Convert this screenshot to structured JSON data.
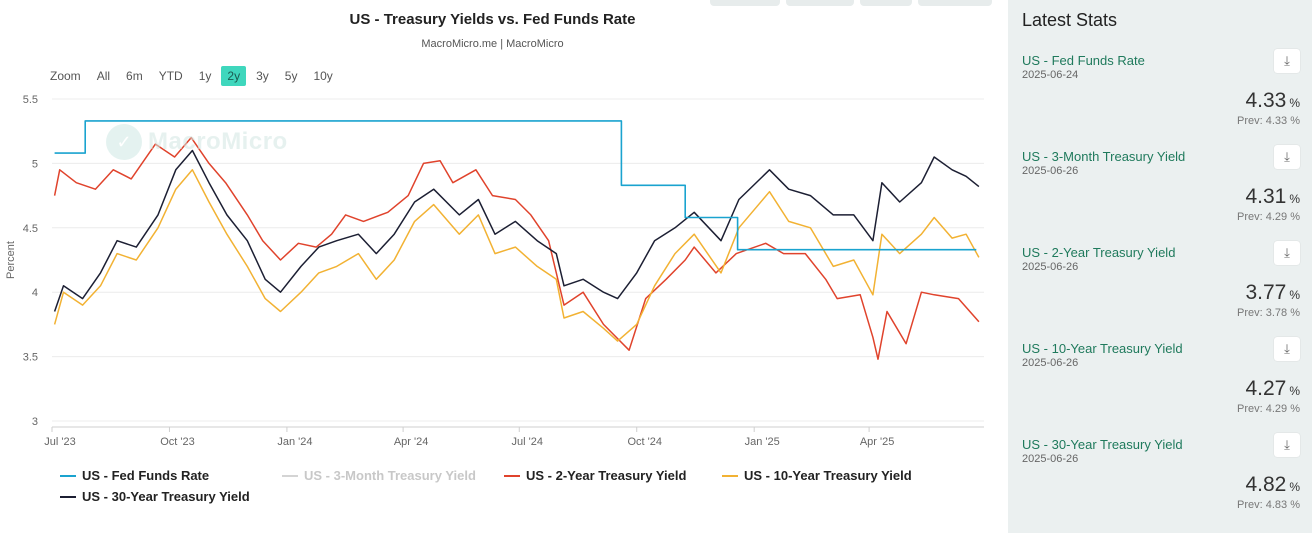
{
  "chart_data": {
    "type": "line",
    "title": "US - Treasury Yields vs. Fed Funds Rate",
    "subtitle": "MacroMicro.me | MacroMicro",
    "ylabel": "Percent",
    "ylim": [
      3,
      5.5
    ],
    "yticks": [
      "3",
      "3.5",
      "4",
      "4.5",
      "5",
      "5.5"
    ],
    "xlim": [
      "2023-07-01",
      "2025-06-30"
    ],
    "xticks": [
      {
        "label": "Jul '23",
        "date": "2023-07-01"
      },
      {
        "label": "Oct '23",
        "date": "2023-10-01"
      },
      {
        "label": "Jan '24",
        "date": "2024-01-01"
      },
      {
        "label": "Apr '24",
        "date": "2024-04-01"
      },
      {
        "label": "Jul '24",
        "date": "2024-07-01"
      },
      {
        "label": "Oct '24",
        "date": "2024-10-01"
      },
      {
        "label": "Jan '25",
        "date": "2025-01-01"
      },
      {
        "label": "Apr '25",
        "date": "2025-04-01"
      }
    ],
    "grid": true,
    "legend_position": "bottom",
    "series": [
      {
        "name": "US - Fed Funds Rate",
        "color": "#1aa3cf",
        "visible": true,
        "step": true,
        "points": [
          [
            "2023-07-03",
            5.08
          ],
          [
            "2023-07-27",
            5.33
          ],
          [
            "2024-09-19",
            4.83
          ],
          [
            "2024-11-08",
            4.58
          ],
          [
            "2024-12-19",
            4.33
          ],
          [
            "2025-06-24",
            4.33
          ]
        ]
      },
      {
        "name": "US - 3-Month Treasury Yield",
        "color": "#c9c9c9",
        "visible": false,
        "points": []
      },
      {
        "name": "US - 2-Year Treasury Yield",
        "color": "#e0432c",
        "visible": true,
        "points": [
          [
            "2023-07-03",
            4.75
          ],
          [
            "2023-07-07",
            4.95
          ],
          [
            "2023-07-20",
            4.85
          ],
          [
            "2023-08-04",
            4.8
          ],
          [
            "2023-08-18",
            4.95
          ],
          [
            "2023-09-01",
            4.88
          ],
          [
            "2023-09-20",
            5.15
          ],
          [
            "2023-10-05",
            5.05
          ],
          [
            "2023-10-18",
            5.2
          ],
          [
            "2023-11-01",
            5.0
          ],
          [
            "2023-11-14",
            4.85
          ],
          [
            "2023-12-01",
            4.6
          ],
          [
            "2023-12-13",
            4.4
          ],
          [
            "2023-12-27",
            4.25
          ],
          [
            "2024-01-10",
            4.38
          ],
          [
            "2024-01-24",
            4.35
          ],
          [
            "2024-02-05",
            4.45
          ],
          [
            "2024-02-16",
            4.6
          ],
          [
            "2024-03-01",
            4.55
          ],
          [
            "2024-03-20",
            4.62
          ],
          [
            "2024-04-05",
            4.75
          ],
          [
            "2024-04-17",
            5.0
          ],
          [
            "2024-04-30",
            5.02
          ],
          [
            "2024-05-10",
            4.85
          ],
          [
            "2024-05-28",
            4.95
          ],
          [
            "2024-06-10",
            4.75
          ],
          [
            "2024-06-28",
            4.72
          ],
          [
            "2024-07-10",
            4.6
          ],
          [
            "2024-07-24",
            4.4
          ],
          [
            "2024-08-05",
            3.9
          ],
          [
            "2024-08-20",
            4.0
          ],
          [
            "2024-09-05",
            3.75
          ],
          [
            "2024-09-25",
            3.55
          ],
          [
            "2024-10-08",
            3.95
          ],
          [
            "2024-10-24",
            4.1
          ],
          [
            "2024-11-08",
            4.25
          ],
          [
            "2024-11-15",
            4.35
          ],
          [
            "2024-12-02",
            4.15
          ],
          [
            "2024-12-18",
            4.3
          ],
          [
            "2025-01-10",
            4.38
          ],
          [
            "2025-01-24",
            4.3
          ],
          [
            "2025-02-10",
            4.3
          ],
          [
            "2025-02-26",
            4.1
          ],
          [
            "2025-03-07",
            3.95
          ],
          [
            "2025-03-25",
            3.98
          ],
          [
            "2025-04-04",
            3.65
          ],
          [
            "2025-04-08",
            3.48
          ],
          [
            "2025-04-15",
            3.85
          ],
          [
            "2025-04-30",
            3.6
          ],
          [
            "2025-05-12",
            4.0
          ],
          [
            "2025-05-22",
            3.98
          ],
          [
            "2025-06-10",
            3.95
          ],
          [
            "2025-06-26",
            3.77
          ]
        ]
      },
      {
        "name": "US - 10-Year Treasury Yield",
        "color": "#f2b233",
        "visible": true,
        "points": [
          [
            "2023-07-03",
            3.75
          ],
          [
            "2023-07-10",
            4.0
          ],
          [
            "2023-07-25",
            3.9
          ],
          [
            "2023-08-08",
            4.05
          ],
          [
            "2023-08-21",
            4.3
          ],
          [
            "2023-09-05",
            4.25
          ],
          [
            "2023-09-22",
            4.5
          ],
          [
            "2023-10-06",
            4.8
          ],
          [
            "2023-10-19",
            4.95
          ],
          [
            "2023-11-01",
            4.7
          ],
          [
            "2023-11-15",
            4.45
          ],
          [
            "2023-12-01",
            4.2
          ],
          [
            "2023-12-15",
            3.95
          ],
          [
            "2023-12-27",
            3.85
          ],
          [
            "2024-01-12",
            4.0
          ],
          [
            "2024-01-26",
            4.15
          ],
          [
            "2024-02-09",
            4.2
          ],
          [
            "2024-02-26",
            4.3
          ],
          [
            "2024-03-11",
            4.1
          ],
          [
            "2024-03-25",
            4.25
          ],
          [
            "2024-04-10",
            4.55
          ],
          [
            "2024-04-25",
            4.68
          ],
          [
            "2024-05-15",
            4.45
          ],
          [
            "2024-05-30",
            4.6
          ],
          [
            "2024-06-12",
            4.3
          ],
          [
            "2024-06-28",
            4.35
          ],
          [
            "2024-07-15",
            4.2
          ],
          [
            "2024-07-30",
            4.1
          ],
          [
            "2024-08-05",
            3.8
          ],
          [
            "2024-08-20",
            3.85
          ],
          [
            "2024-09-05",
            3.72
          ],
          [
            "2024-09-16",
            3.62
          ],
          [
            "2024-10-01",
            3.75
          ],
          [
            "2024-10-15",
            4.05
          ],
          [
            "2024-10-31",
            4.3
          ],
          [
            "2024-11-15",
            4.45
          ],
          [
            "2024-12-06",
            4.15
          ],
          [
            "2024-12-20",
            4.5
          ],
          [
            "2025-01-13",
            4.78
          ],
          [
            "2025-01-28",
            4.55
          ],
          [
            "2025-02-14",
            4.5
          ],
          [
            "2025-03-04",
            4.2
          ],
          [
            "2025-03-20",
            4.25
          ],
          [
            "2025-04-04",
            3.98
          ],
          [
            "2025-04-11",
            4.45
          ],
          [
            "2025-04-25",
            4.3
          ],
          [
            "2025-05-12",
            4.45
          ],
          [
            "2025-05-22",
            4.58
          ],
          [
            "2025-06-05",
            4.42
          ],
          [
            "2025-06-16",
            4.45
          ],
          [
            "2025-06-26",
            4.27
          ]
        ]
      },
      {
        "name": "US - 30-Year Treasury Yield",
        "color": "#1c1f33",
        "visible": true,
        "points": [
          [
            "2023-07-03",
            3.85
          ],
          [
            "2023-07-10",
            4.05
          ],
          [
            "2023-07-25",
            3.95
          ],
          [
            "2023-08-08",
            4.15
          ],
          [
            "2023-08-21",
            4.4
          ],
          [
            "2023-09-05",
            4.35
          ],
          [
            "2023-09-22",
            4.6
          ],
          [
            "2023-10-06",
            4.95
          ],
          [
            "2023-10-19",
            5.1
          ],
          [
            "2023-11-01",
            4.85
          ],
          [
            "2023-11-15",
            4.6
          ],
          [
            "2023-12-01",
            4.4
          ],
          [
            "2023-12-15",
            4.1
          ],
          [
            "2023-12-27",
            4.0
          ],
          [
            "2024-01-12",
            4.2
          ],
          [
            "2024-01-26",
            4.35
          ],
          [
            "2024-02-09",
            4.4
          ],
          [
            "2024-02-26",
            4.45
          ],
          [
            "2024-03-11",
            4.3
          ],
          [
            "2024-03-25",
            4.45
          ],
          [
            "2024-04-10",
            4.7
          ],
          [
            "2024-04-25",
            4.8
          ],
          [
            "2024-05-15",
            4.6
          ],
          [
            "2024-05-30",
            4.72
          ],
          [
            "2024-06-12",
            4.45
          ],
          [
            "2024-06-28",
            4.55
          ],
          [
            "2024-07-15",
            4.4
          ],
          [
            "2024-07-30",
            4.3
          ],
          [
            "2024-08-05",
            4.05
          ],
          [
            "2024-08-20",
            4.1
          ],
          [
            "2024-09-05",
            4.0
          ],
          [
            "2024-09-16",
            3.95
          ],
          [
            "2024-10-01",
            4.15
          ],
          [
            "2024-10-15",
            4.4
          ],
          [
            "2024-10-31",
            4.5
          ],
          [
            "2024-11-15",
            4.62
          ],
          [
            "2024-12-06",
            4.4
          ],
          [
            "2024-12-20",
            4.72
          ],
          [
            "2025-01-13",
            4.95
          ],
          [
            "2025-01-28",
            4.8
          ],
          [
            "2025-02-14",
            4.75
          ],
          [
            "2025-03-04",
            4.6
          ],
          [
            "2025-03-20",
            4.6
          ],
          [
            "2025-04-04",
            4.4
          ],
          [
            "2025-04-11",
            4.85
          ],
          [
            "2025-04-25",
            4.7
          ],
          [
            "2025-05-12",
            4.85
          ],
          [
            "2025-05-22",
            5.05
          ],
          [
            "2025-06-05",
            4.95
          ],
          [
            "2025-06-16",
            4.9
          ],
          [
            "2025-06-26",
            4.82
          ]
        ]
      }
    ]
  },
  "range_selector": {
    "zoom_label": "Zoom",
    "buttons": [
      "All",
      "6m",
      "YTD",
      "1y",
      "2y",
      "3y",
      "5y",
      "10y"
    ],
    "active": "2y"
  },
  "watermark": "MacroMicro",
  "panel": {
    "title": "Latest Stats",
    "unit": "%",
    "download_icon": "download-icon",
    "stats": [
      {
        "name": "US - Fed Funds Rate",
        "date": "2025-06-24",
        "value": "4.33",
        "prev": "Prev: 4.33 %"
      },
      {
        "name": "US - 3-Month Treasury Yield",
        "date": "2025-06-26",
        "value": "4.31",
        "prev": "Prev: 4.29 %"
      },
      {
        "name": "US - 2-Year Treasury Yield",
        "date": "2025-06-26",
        "value": "3.77",
        "prev": "Prev: 3.78 %"
      },
      {
        "name": "US - 10-Year Treasury Yield",
        "date": "2025-06-26",
        "value": "4.27",
        "prev": "Prev: 4.29 %"
      },
      {
        "name": "US - 30-Year Treasury Yield",
        "date": "2025-06-26",
        "value": "4.82",
        "prev": "Prev: 4.83 %"
      }
    ]
  }
}
